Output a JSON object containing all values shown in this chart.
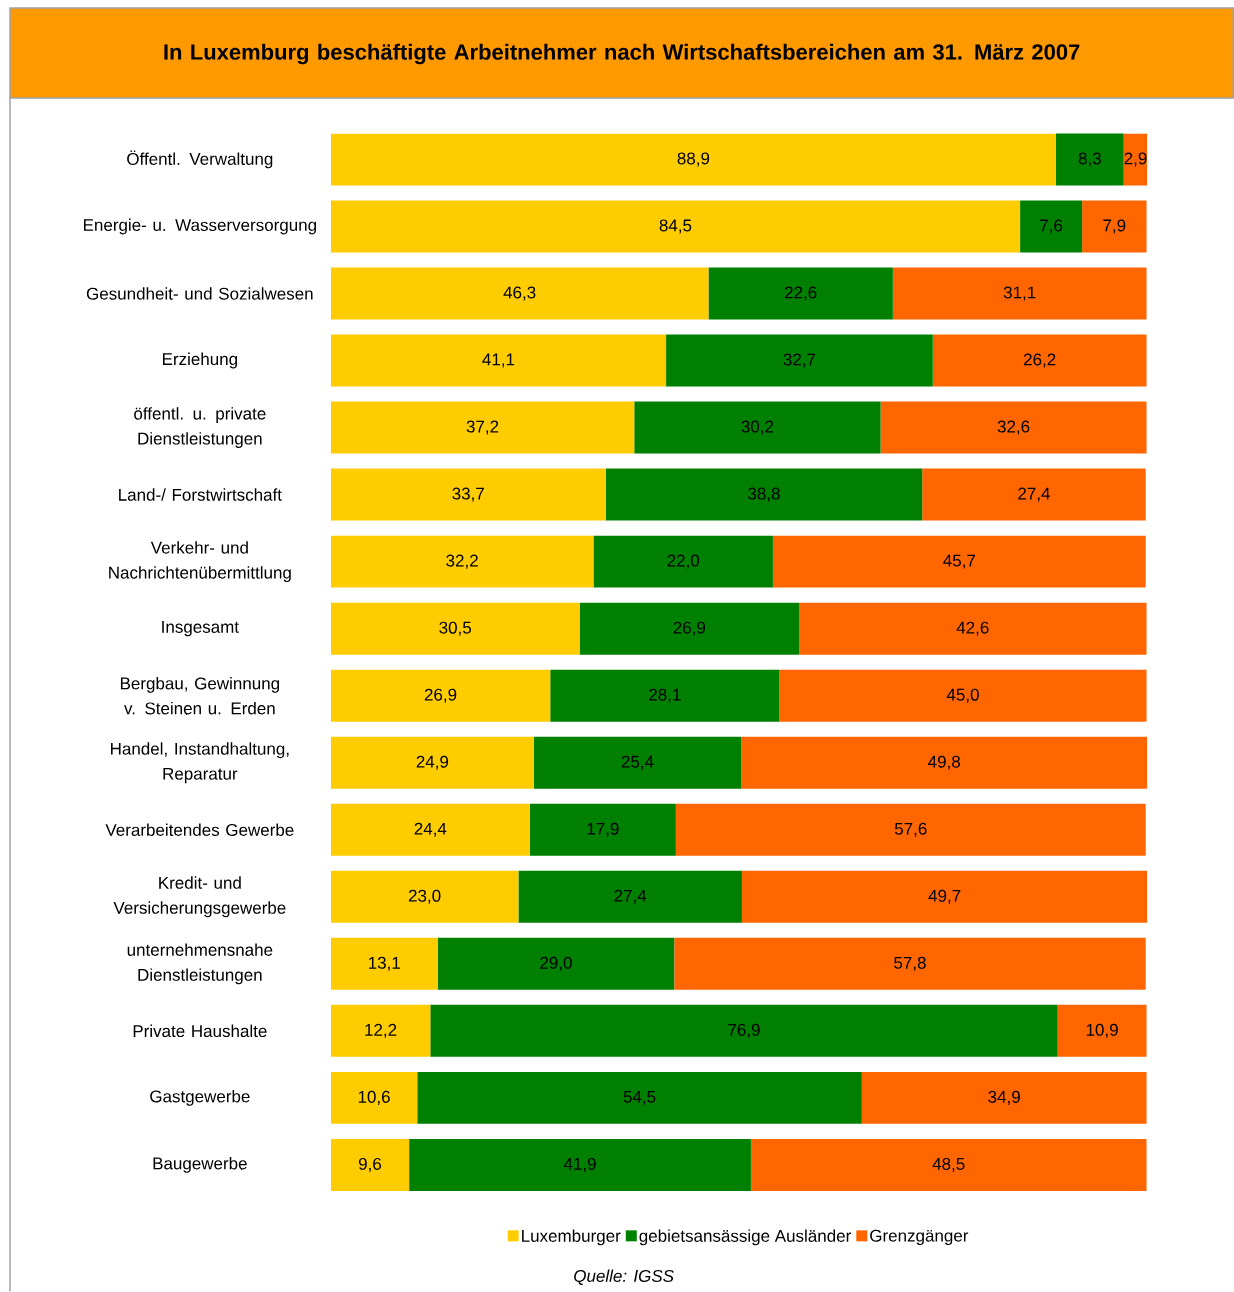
{
  "chart_data": {
    "type": "bar",
    "orientation": "horizontal",
    "stacked": true,
    "title": "In Luxemburg beschäftigte Arbeitnehmer nach Wirtschaftsbereichen am 31. März 2007",
    "categories": [
      "Öffentl. Verwaltung",
      "Energie- u. Wasserversorgung",
      "Gesundheit- und Sozialwesen",
      "Erziehung",
      "öffentl. u. private Dienstleistungen",
      "Land-/ Forstwirtschaft",
      "Verkehr- und Nachrichtenübermittlung",
      "Insgesamt",
      "Bergbau, Gewinnung v. Steinen u. Erden",
      "Handel, Instandhaltung, Reparatur",
      "Verarbeitendes Gewerbe",
      "Kredit- und Versicherungsgewerbe",
      "unternehmensnahe Dienstleistungen",
      "Private Haushalte",
      "Gastgewerbe",
      "Baugewerbe"
    ],
    "series": [
      {
        "name": "Luxemburger",
        "color": "#ffcc00",
        "values": [
          88.9,
          84.5,
          46.3,
          41.1,
          37.2,
          33.7,
          32.2,
          30.5,
          26.9,
          24.9,
          24.4,
          23.0,
          13.1,
          12.2,
          10.6,
          9.6
        ],
        "value_labels": [
          "88,9",
          "84,5",
          "46,3",
          "41,1",
          "37,2",
          "33,7",
          "32,2",
          "30,5",
          "26,9",
          "24,9",
          "24,4",
          "23,0",
          "13,1",
          "12,2",
          "10,6",
          "9,6"
        ]
      },
      {
        "name": "gebietsansässige Ausländer",
        "color": "#008000",
        "values": [
          8.3,
          7.6,
          22.6,
          32.7,
          30.2,
          38.8,
          22.0,
          26.9,
          28.1,
          25.4,
          17.9,
          27.4,
          29.0,
          76.9,
          54.5,
          41.9
        ],
        "value_labels": [
          "8,3",
          "7,6",
          "22,6",
          "32,7",
          "30,2",
          "38,8",
          "22,0",
          "26,9",
          "28,1",
          "25,4",
          "17,9",
          "27,4",
          "29,0",
          "76,9",
          "54,5",
          "41,9"
        ]
      },
      {
        "name": "Grenzgänger",
        "color": "#ff6600",
        "values": [
          2.9,
          7.9,
          31.1,
          26.2,
          32.6,
          27.4,
          45.7,
          42.6,
          45.0,
          49.8,
          57.6,
          49.7,
          57.8,
          10.9,
          34.9,
          48.5
        ],
        "value_labels": [
          "2,9",
          "7,9",
          "31,1",
          "26,2",
          "32,6",
          "27,4",
          "45,7",
          "42,6",
          "45,0",
          "49,8",
          "57,6",
          "49,7",
          "57,8",
          "10,9",
          "34,9",
          "48,5"
        ]
      }
    ],
    "legend": "bottom",
    "annotations": [
      "Quelle: IGSS"
    ]
  }
}
